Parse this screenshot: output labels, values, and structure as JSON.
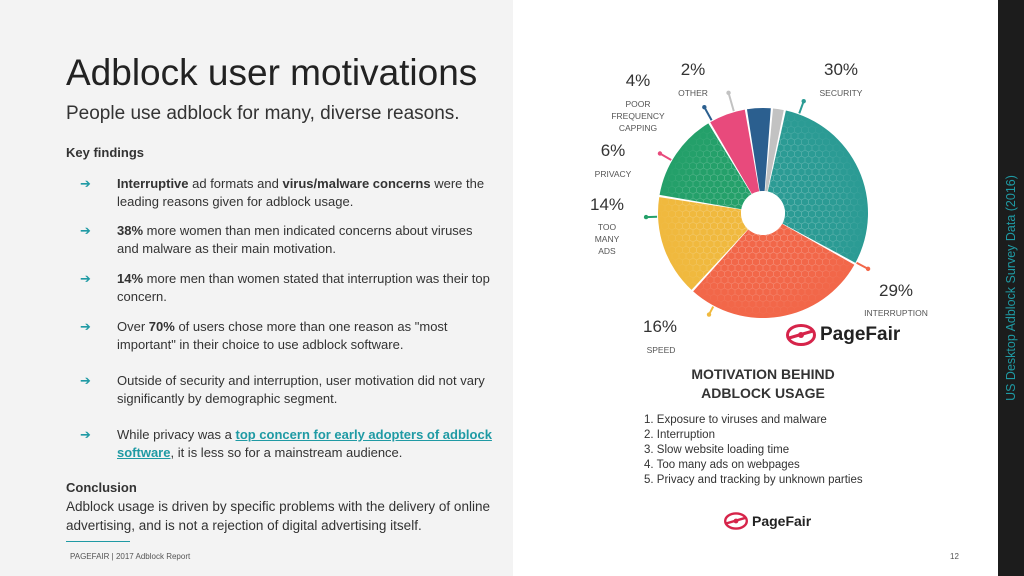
{
  "slide": {
    "title": "Adblock user motivations",
    "subtitle": "People use adblock for many, diverse reasons.",
    "key_findings_heading": "Key findings",
    "findings": [
      {
        "parts": [
          {
            "t": "Interruptive",
            "b": true
          },
          {
            "t": " ad formats and "
          },
          {
            "t": "virus/malware concerns",
            "b": true
          },
          {
            "t": " were the leading reasons given for adblock usage."
          }
        ]
      },
      {
        "parts": [
          {
            "t": "38%",
            "b": true
          },
          {
            "t": " more women than men indicated concerns about viruses and malware as their main motivation."
          }
        ]
      },
      {
        "parts": [
          {
            "t": "14%",
            "b": true
          },
          {
            "t": " more men than women stated that interruption was their top concern."
          }
        ]
      },
      {
        "parts": [
          {
            "t": "Over "
          },
          {
            "t": "70%",
            "b": true
          },
          {
            "t": " of users chose more than one reason as \"most important\" in their choice to use adblock software."
          }
        ]
      },
      {
        "parts": [
          {
            "t": "Outside of security and interruption, user motivation did not vary significantly by demographic segment."
          }
        ]
      },
      {
        "parts": [
          {
            "t": "While privacy was a "
          },
          {
            "t": "top concern for early adopters of adblock software",
            "link": true
          },
          {
            "t": ", it is less so for a mainstream audience."
          }
        ]
      }
    ],
    "conclusion_heading": "Conclusion",
    "conclusion_text": "Adblock usage is driven by specific problems with the delivery of online advertising, and is not a rejection of digital advertising itself.",
    "footer": "PAGEFAIR | 2017 Adblock Report",
    "page_number": "12",
    "side_label": "US Desktop Adblock Survey Data (2016)",
    "arrow_glyph": "➔",
    "brand_name": "PageFair",
    "brand_icon": "pagefair-logo-icon",
    "accent_color": "#1f9aa4"
  },
  "chart_data": {
    "type": "pie",
    "title": "MOTIVATION BEHIND ADBLOCK USAGE",
    "slices": [
      {
        "label": "SECURITY",
        "value": 30,
        "value_label": "30%",
        "color": "#2b9b94",
        "hatched": true
      },
      {
        "label": "INTERRUPTION",
        "value": 29,
        "value_label": "29%",
        "color": "#f26749",
        "hatched": true
      },
      {
        "label": "SPEED",
        "value": 16,
        "value_label": "16%",
        "color": "#f0b93e",
        "hatched": true
      },
      {
        "label": "TOO MANY ADS",
        "value": 14,
        "value_label": "14%",
        "color": "#24a06a",
        "hatched": true
      },
      {
        "label": "PRIVACY",
        "value": 6,
        "value_label": "6%",
        "color": "#e84a7c",
        "hatched": false
      },
      {
        "label": "POOR FREQUENCY CAPPING",
        "value": 4,
        "value_label": "4%",
        "color": "#2b5f8f",
        "hatched": false
      },
      {
        "label": "OTHER",
        "value": 2,
        "value_label": "2%",
        "color": "#c2c2c2",
        "hatched": false
      }
    ],
    "legend": [
      "1. Exposure to viruses and malware",
      "2. Interruption",
      "3. Slow website loading time",
      "4. Too many ads on webpages",
      "5. Privacy and tracking by unknown parties"
    ]
  }
}
